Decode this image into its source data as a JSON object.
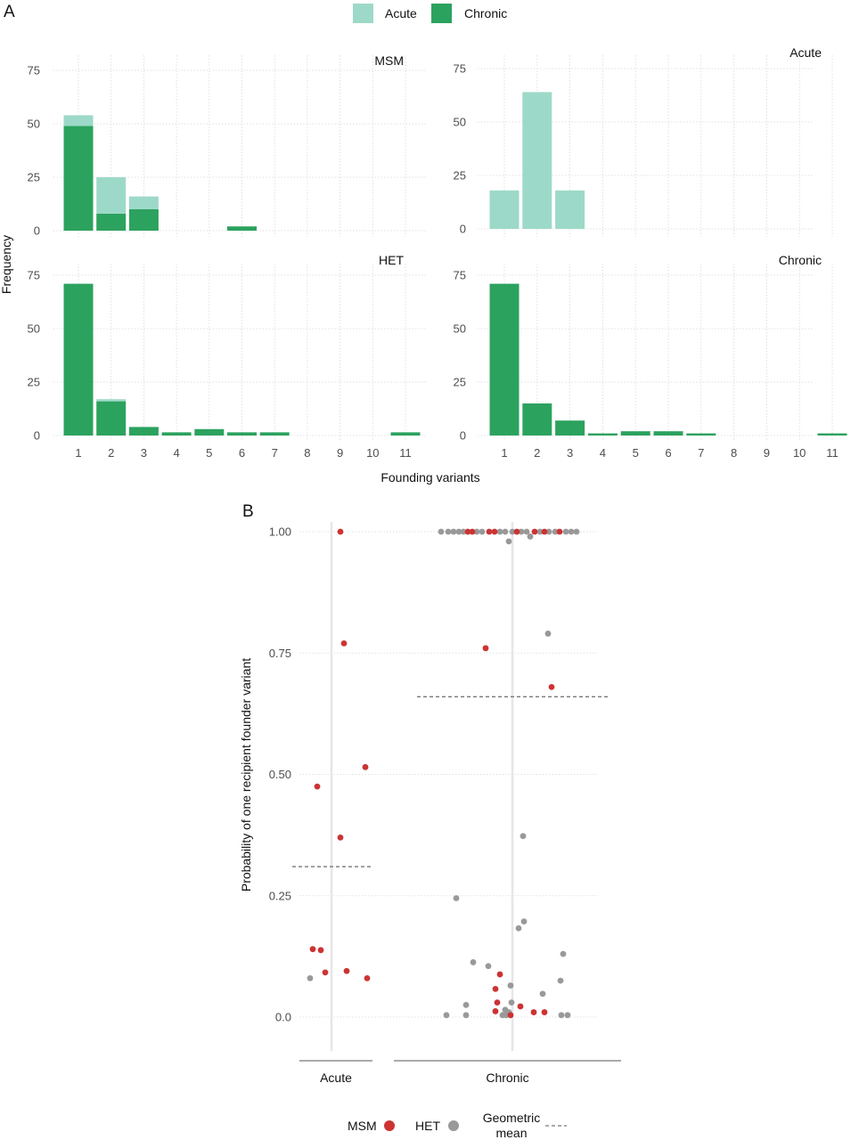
{
  "panel_labels": [
    "A",
    "B"
  ],
  "colors": {
    "acute": "#9dd9c8",
    "chronic": "#2ca25f",
    "msm": "#cc3333",
    "het": "#999999",
    "grid": "#d9d9d9",
    "mean_line": "#777777",
    "center_line": "#e6e6e6"
  },
  "chart_data": [
    {
      "type": "bar",
      "panel": "A",
      "legend": {
        "position": "top",
        "entries": [
          "Acute",
          "Chronic"
        ]
      },
      "xlabel": "Founding variants",
      "ylabel": "Frequency",
      "categories": [
        "1",
        "2",
        "3",
        "4",
        "5",
        "6",
        "7",
        "8",
        "9",
        "10",
        "11"
      ],
      "ylim": [
        0,
        85
      ],
      "yticks": [
        "0",
        "25",
        "50",
        "75"
      ],
      "grid": true,
      "facets": [
        {
          "strip": "MSM",
          "stacked": true,
          "series": [
            {
              "name": "Acute",
              "values": [
                5,
                17,
                6,
                0,
                0,
                0,
                0,
                0,
                0,
                0,
                0
              ]
            },
            {
              "name": "Chronic",
              "values": [
                49,
                8,
                10,
                0,
                0,
                2,
                0,
                0,
                0,
                0,
                0
              ]
            }
          ]
        },
        {
          "strip": "Acute",
          "stacked": true,
          "series": [
            {
              "name": "Acute",
              "values": [
                18,
                64,
                18,
                0,
                0,
                0,
                0,
                0,
                0,
                0,
                0
              ]
            },
            {
              "name": "Chronic",
              "values": [
                0,
                0,
                0,
                0,
                0,
                0,
                0,
                0,
                0,
                0,
                0
              ]
            }
          ]
        },
        {
          "strip": "HET",
          "stacked": true,
          "series": [
            {
              "name": "Acute",
              "values": [
                0,
                1,
                0,
                0,
                0,
                0,
                0,
                0,
                0,
                0,
                0
              ]
            },
            {
              "name": "Chronic",
              "values": [
                71,
                16,
                4,
                1.5,
                3,
                1.5,
                1.5,
                0,
                0,
                0,
                1.5
              ]
            }
          ]
        },
        {
          "strip": "Chronic",
          "stacked": true,
          "series": [
            {
              "name": "Acute",
              "values": [
                0,
                0,
                0,
                0,
                0,
                0,
                0,
                0,
                0,
                0,
                0
              ]
            },
            {
              "name": "Chronic",
              "values": [
                71,
                15,
                7,
                1,
                2,
                2,
                1,
                0,
                0,
                0,
                1
              ]
            }
          ]
        }
      ]
    },
    {
      "type": "scatter",
      "panel": "B",
      "ylabel": "Probability of one recipient founder variant",
      "categories": [
        "Acute",
        "Chronic"
      ],
      "ylim": [
        -0.07,
        1.02
      ],
      "yticks": [
        "0.0",
        "0.25",
        "0.50",
        "0.75",
        "1.00"
      ],
      "grid": true,
      "geometric_mean": {
        "Acute": 0.31,
        "Chronic": 0.66
      },
      "legend": {
        "position": "bottom",
        "entries": [
          "MSM",
          "HET",
          "Geometric mean"
        ]
      },
      "series": [
        {
          "name": "MSM",
          "points": [
            {
              "group": "Acute",
              "jitter": 0.1,
              "y": 1.0
            },
            {
              "group": "Acute",
              "jitter": 0.14,
              "y": 0.77
            },
            {
              "group": "Acute",
              "jitter": 0.38,
              "y": 0.515
            },
            {
              "group": "Acute",
              "jitter": -0.16,
              "y": 0.475
            },
            {
              "group": "Acute",
              "jitter": 0.1,
              "y": 0.37
            },
            {
              "group": "Acute",
              "jitter": -0.21,
              "y": 0.14
            },
            {
              "group": "Acute",
              "jitter": -0.12,
              "y": 0.138
            },
            {
              "group": "Acute",
              "jitter": -0.07,
              "y": 0.092
            },
            {
              "group": "Acute",
              "jitter": 0.17,
              "y": 0.095
            },
            {
              "group": "Acute",
              "jitter": 0.4,
              "y": 0.08
            },
            {
              "group": "Chronic",
              "jitter": -0.5,
              "y": 1.0
            },
            {
              "group": "Chronic",
              "jitter": -0.45,
              "y": 1.0
            },
            {
              "group": "Chronic",
              "jitter": -0.26,
              "y": 1.0
            },
            {
              "group": "Chronic",
              "jitter": -0.2,
              "y": 1.0
            },
            {
              "group": "Chronic",
              "jitter": 0.05,
              "y": 1.0
            },
            {
              "group": "Chronic",
              "jitter": 0.25,
              "y": 1.0
            },
            {
              "group": "Chronic",
              "jitter": 0.36,
              "y": 1.0
            },
            {
              "group": "Chronic",
              "jitter": 0.53,
              "y": 1.0
            },
            {
              "group": "Chronic",
              "jitter": -0.3,
              "y": 0.76
            },
            {
              "group": "Chronic",
              "jitter": 0.44,
              "y": 0.68
            },
            {
              "group": "Chronic",
              "jitter": -0.14,
              "y": 0.088
            },
            {
              "group": "Chronic",
              "jitter": -0.19,
              "y": 0.058
            },
            {
              "group": "Chronic",
              "jitter": -0.17,
              "y": 0.03
            },
            {
              "group": "Chronic",
              "jitter": 0.09,
              "y": 0.022
            },
            {
              "group": "Chronic",
              "jitter": -0.19,
              "y": 0.012
            },
            {
              "group": "Chronic",
              "jitter": 0.24,
              "y": 0.01
            },
            {
              "group": "Chronic",
              "jitter": 0.36,
              "y": 0.01
            },
            {
              "group": "Chronic",
              "jitter": -0.02,
              "y": 0.004
            }
          ]
        },
        {
          "name": "HET",
          "points": [
            {
              "group": "Acute",
              "jitter": -0.24,
              "y": 0.08
            },
            {
              "group": "Chronic",
              "jitter": -0.8,
              "y": 1.0
            },
            {
              "group": "Chronic",
              "jitter": -0.72,
              "y": 1.0
            },
            {
              "group": "Chronic",
              "jitter": -0.66,
              "y": 1.0
            },
            {
              "group": "Chronic",
              "jitter": -0.6,
              "y": 1.0
            },
            {
              "group": "Chronic",
              "jitter": -0.55,
              "y": 1.0
            },
            {
              "group": "Chronic",
              "jitter": -0.4,
              "y": 1.0
            },
            {
              "group": "Chronic",
              "jitter": -0.34,
              "y": 1.0
            },
            {
              "group": "Chronic",
              "jitter": -0.14,
              "y": 1.0
            },
            {
              "group": "Chronic",
              "jitter": -0.08,
              "y": 1.0
            },
            {
              "group": "Chronic",
              "jitter": 0.0,
              "y": 1.0
            },
            {
              "group": "Chronic",
              "jitter": 0.1,
              "y": 1.0
            },
            {
              "group": "Chronic",
              "jitter": 0.16,
              "y": 1.0
            },
            {
              "group": "Chronic",
              "jitter": 0.31,
              "y": 1.0
            },
            {
              "group": "Chronic",
              "jitter": 0.41,
              "y": 1.0
            },
            {
              "group": "Chronic",
              "jitter": 0.48,
              "y": 1.0
            },
            {
              "group": "Chronic",
              "jitter": 0.6,
              "y": 1.0
            },
            {
              "group": "Chronic",
              "jitter": 0.66,
              "y": 1.0
            },
            {
              "group": "Chronic",
              "jitter": 0.72,
              "y": 1.0
            },
            {
              "group": "Chronic",
              "jitter": 0.2,
              "y": 0.99
            },
            {
              "group": "Chronic",
              "jitter": -0.04,
              "y": 0.98
            },
            {
              "group": "Chronic",
              "jitter": 0.4,
              "y": 0.79
            },
            {
              "group": "Chronic",
              "jitter": 0.12,
              "y": 0.373
            },
            {
              "group": "Chronic",
              "jitter": -0.63,
              "y": 0.245
            },
            {
              "group": "Chronic",
              "jitter": 0.13,
              "y": 0.197
            },
            {
              "group": "Chronic",
              "jitter": 0.07,
              "y": 0.183
            },
            {
              "group": "Chronic",
              "jitter": 0.57,
              "y": 0.13
            },
            {
              "group": "Chronic",
              "jitter": -0.44,
              "y": 0.113
            },
            {
              "group": "Chronic",
              "jitter": -0.27,
              "y": 0.105
            },
            {
              "group": "Chronic",
              "jitter": 0.54,
              "y": 0.075
            },
            {
              "group": "Chronic",
              "jitter": -0.02,
              "y": 0.065
            },
            {
              "group": "Chronic",
              "jitter": 0.34,
              "y": 0.048
            },
            {
              "group": "Chronic",
              "jitter": -0.01,
              "y": 0.03
            },
            {
              "group": "Chronic",
              "jitter": -0.52,
              "y": 0.025
            },
            {
              "group": "Chronic",
              "jitter": -0.08,
              "y": 0.015
            },
            {
              "group": "Chronic",
              "jitter": -0.04,
              "y": 0.01
            },
            {
              "group": "Chronic",
              "jitter": -0.74,
              "y": 0.004
            },
            {
              "group": "Chronic",
              "jitter": -0.52,
              "y": 0.004
            },
            {
              "group": "Chronic",
              "jitter": -0.11,
              "y": 0.004
            },
            {
              "group": "Chronic",
              "jitter": -0.07,
              "y": 0.004
            },
            {
              "group": "Chronic",
              "jitter": 0.55,
              "y": 0.004
            },
            {
              "group": "Chronic",
              "jitter": 0.62,
              "y": 0.004
            }
          ]
        }
      ]
    }
  ]
}
